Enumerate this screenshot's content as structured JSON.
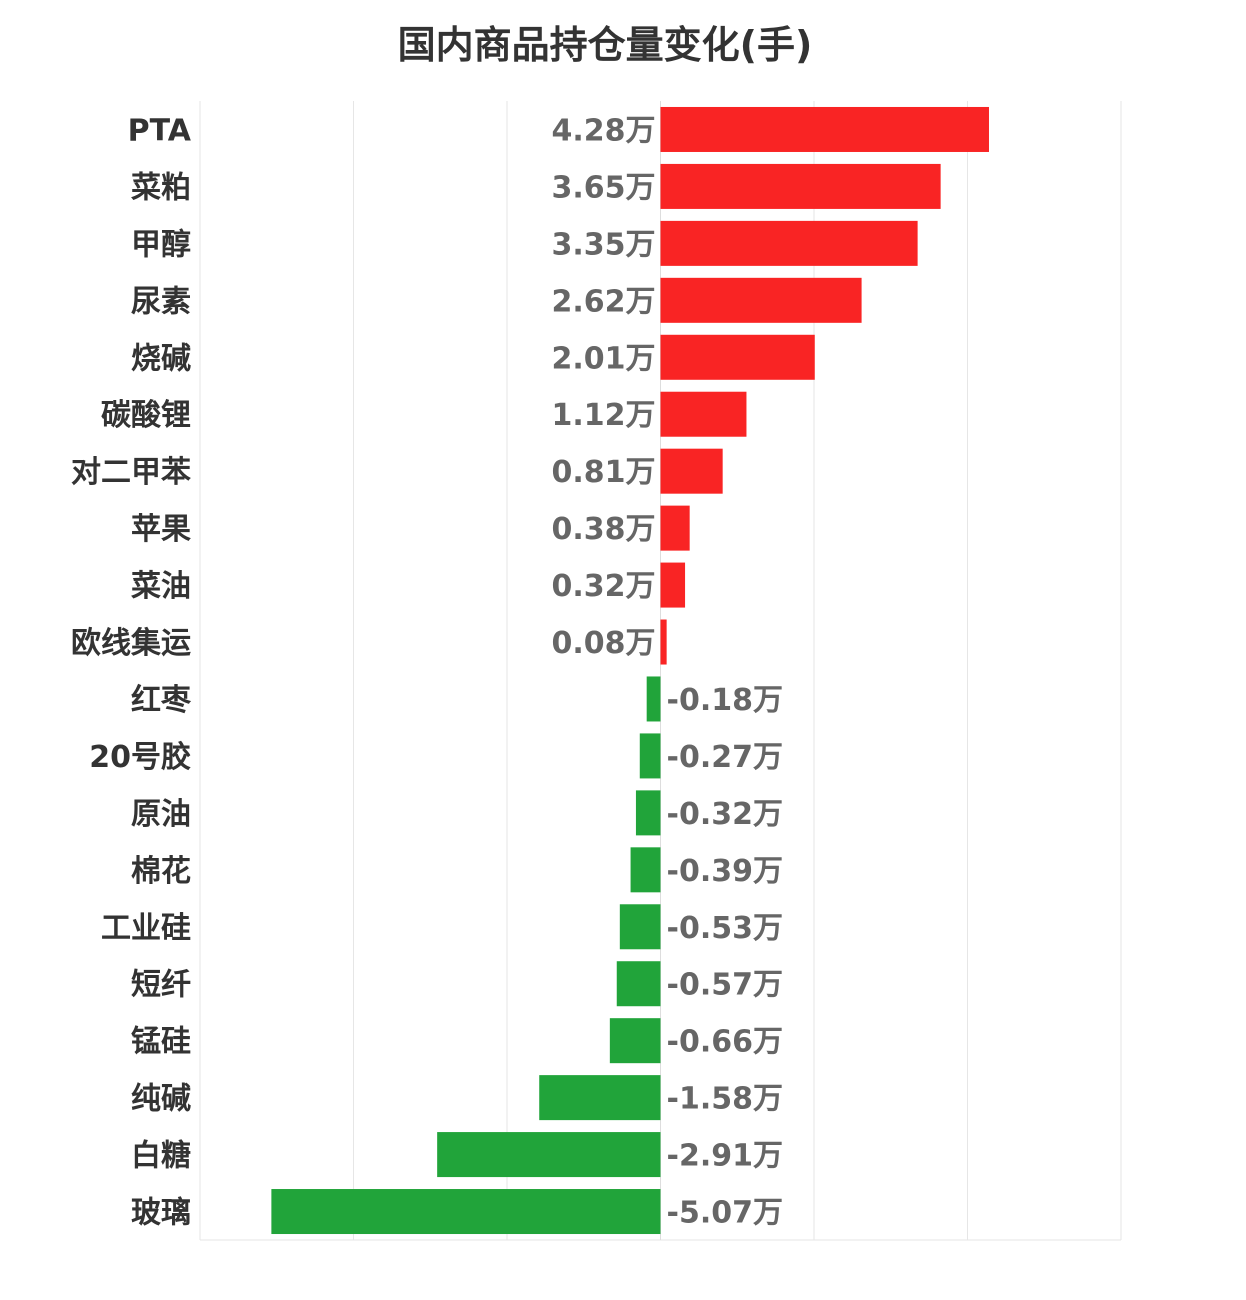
{
  "chart_data": {
    "type": "bar",
    "orientation": "horizontal",
    "title": "国内商品持仓量变化(手)",
    "unit_suffix": "万",
    "xlim": [
      -6,
      6
    ],
    "x_tick_step": 2,
    "grid": true,
    "categories": [
      "PTA",
      "菜粕",
      "甲醇",
      "尿素",
      "烧碱",
      "碳酸锂",
      "对二甲苯",
      "苹果",
      "菜油",
      "欧线集运",
      "红枣",
      "20号胶",
      "原油",
      "棉花",
      "工业硅",
      "短纤",
      "锰硅",
      "纯碱",
      "白糖",
      "玻璃"
    ],
    "values": [
      4.28,
      3.65,
      3.35,
      2.62,
      2.01,
      1.12,
      0.81,
      0.38,
      0.32,
      0.08,
      -0.18,
      -0.27,
      -0.32,
      -0.39,
      -0.53,
      -0.57,
      -0.66,
      -1.58,
      -2.91,
      -5.07
    ],
    "labels": [
      "4.28万",
      "3.65万",
      "3.35万",
      "2.62万",
      "2.01万",
      "1.12万",
      "0.81万",
      "0.38万",
      "0.32万",
      "0.08万",
      "-0.18万",
      "-0.27万",
      "-0.32万",
      "-0.39万",
      "-0.53万",
      "-0.57万",
      "-0.66万",
      "-1.58万",
      "-2.91万",
      "-5.07万"
    ],
    "colors": {
      "positive": "#F92424",
      "negative": "#21A43A",
      "grid": "#E6E6E6"
    }
  }
}
